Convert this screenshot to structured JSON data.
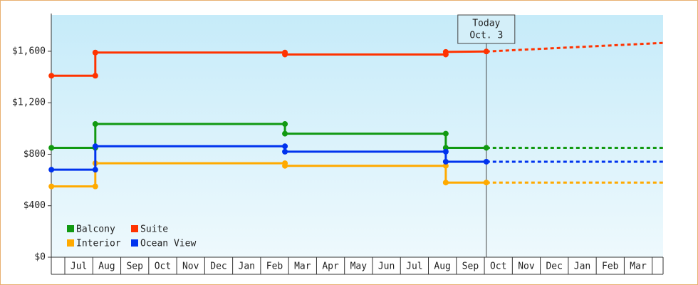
{
  "chart_data": {
    "type": "step-line",
    "x": [
      0.52,
      2.09,
      2.09,
      8.87,
      8.87,
      14.62,
      14.62,
      16.07
    ],
    "forecast_x": [
      16.07,
      22.39
    ],
    "series": [
      {
        "name": "Balcony",
        "color": "#119911",
        "values": [
          850,
          850,
          1035,
          1035,
          960,
          960,
          850,
          850
        ],
        "forecast": [
          850,
          850
        ]
      },
      {
        "name": "Suite",
        "color": "#ff3300",
        "values": [
          1410,
          1410,
          1590,
          1590,
          1575,
          1575,
          1595,
          1598
        ],
        "forecast": [
          1598,
          1665
        ]
      },
      {
        "name": "Interior",
        "color": "#ffaa00",
        "values": [
          550,
          550,
          730,
          730,
          710,
          710,
          580,
          580
        ],
        "forecast": [
          580,
          580
        ]
      },
      {
        "name": "Ocean View",
        "color": "#0033ee",
        "values": [
          680,
          680,
          862,
          862,
          820,
          820,
          742,
          742
        ],
        "forecast": [
          742,
          742
        ]
      }
    ],
    "xlim": [
      0.516,
      22.39
    ],
    "xticks": [
      {
        "value": 1.5,
        "label": "Jul"
      },
      {
        "value": 2.5,
        "label": "Aug"
      },
      {
        "value": 3.5,
        "label": "Sep"
      },
      {
        "value": 4.5,
        "label": "Oct"
      },
      {
        "value": 5.5,
        "label": "Nov"
      },
      {
        "value": 6.5,
        "label": "Dec"
      },
      {
        "value": 7.5,
        "label": "Jan"
      },
      {
        "value": 8.5,
        "label": "Feb"
      },
      {
        "value": 9.5,
        "label": "Mar"
      },
      {
        "value": 10.5,
        "label": "Apr"
      },
      {
        "value": 11.5,
        "label": "May"
      },
      {
        "value": 12.5,
        "label": "Jun"
      },
      {
        "value": 13.5,
        "label": "Jul"
      },
      {
        "value": 14.5,
        "label": "Aug"
      },
      {
        "value": 15.5,
        "label": "Sep"
      },
      {
        "value": 16.5,
        "label": "Oct"
      },
      {
        "value": 17.5,
        "label": "Nov"
      },
      {
        "value": 18.5,
        "label": "Dec"
      },
      {
        "value": 19.5,
        "label": "Jan"
      },
      {
        "value": 20.5,
        "label": "Feb"
      },
      {
        "value": 21.5,
        "label": "Mar"
      }
    ],
    "ylim": [
      0,
      1882
    ],
    "yticks": [
      {
        "value": 0,
        "label": "$0"
      },
      {
        "value": 400,
        "label": "$400"
      },
      {
        "value": 800,
        "label": "$800"
      },
      {
        "value": 1200,
        "label": "$1,200"
      },
      {
        "value": 1600,
        "label": "$1,600"
      }
    ],
    "annotation": {
      "x": 16.07,
      "title": "Today",
      "date": "Oct. 3"
    },
    "legend": "bottom-left"
  }
}
